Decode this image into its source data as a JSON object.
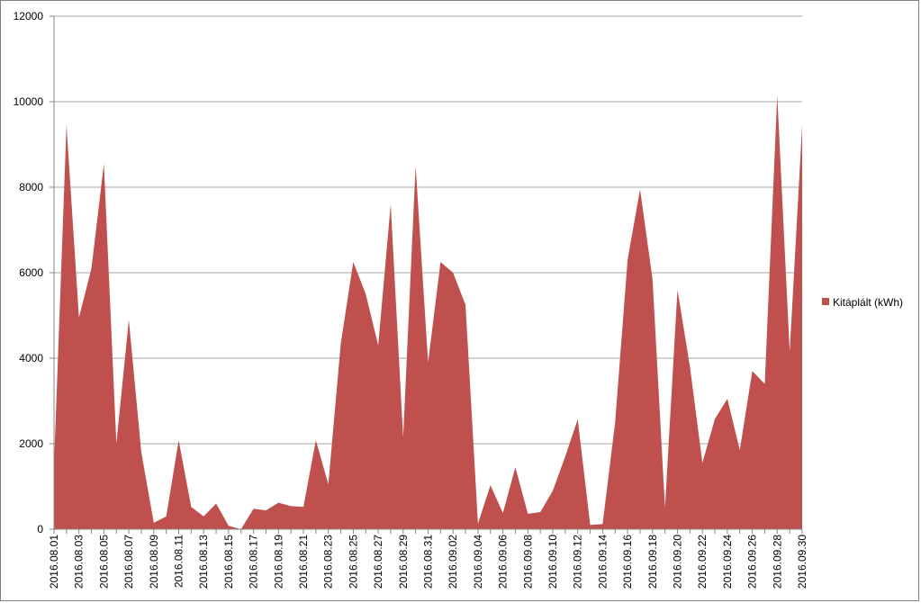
{
  "chart_data": {
    "type": "area",
    "title": "",
    "xlabel": "",
    "ylabel": "",
    "ylim": [
      0,
      12000
    ],
    "y_ticks": [
      "0",
      "2000",
      "4000",
      "6000",
      "8000",
      "10000",
      "12000"
    ],
    "grid": "horizontal",
    "legend_position": "right",
    "colors": {
      "series": "#c0504d",
      "grid": "#a6a6a6",
      "axis": "#868686"
    },
    "x": [
      "2016.08.01",
      "2016.08.02",
      "2016.08.03",
      "2016.08.04",
      "2016.08.05",
      "2016.08.06",
      "2016.08.07",
      "2016.08.08",
      "2016.08.09",
      "2016.08.10",
      "2016.08.11",
      "2016.08.12",
      "2016.08.13",
      "2016.08.14",
      "2016.08.15",
      "2016.08.16",
      "2016.08.17",
      "2016.08.18",
      "2016.08.19",
      "2016.08.20",
      "2016.08.21",
      "2016.08.22",
      "2016.08.23",
      "2016.08.24",
      "2016.08.25",
      "2016.08.26",
      "2016.08.27",
      "2016.08.28",
      "2016.08.29",
      "2016.08.30",
      "2016.08.31",
      "2016.09.01",
      "2016.09.02",
      "2016.09.03",
      "2016.09.04",
      "2016.09.05",
      "2016.09.06",
      "2016.09.07",
      "2016.09.08",
      "2016.09.09",
      "2016.09.10",
      "2016.09.11",
      "2016.09.12",
      "2016.09.13",
      "2016.09.14",
      "2016.09.15",
      "2016.09.16",
      "2016.09.17",
      "2016.09.18",
      "2016.09.19",
      "2016.09.20",
      "2016.09.21",
      "2016.09.22",
      "2016.09.23",
      "2016.09.24",
      "2016.09.25",
      "2016.09.26",
      "2016.09.27",
      "2016.09.28",
      "2016.09.29",
      "2016.09.30"
    ],
    "x_tick_labels": [
      "2016.08.01",
      "",
      "2016.08.03",
      "",
      "2016.08.05",
      "",
      "2016.08.07",
      "",
      "2016.08.09",
      "",
      "2016.08.11",
      "",
      "2016.08.13",
      "",
      "2016.08.15",
      "",
      "2016.08.17",
      "",
      "2016.08.19",
      "",
      "2016.08.21",
      "",
      "2016.08.23",
      "",
      "2016.08.25",
      "",
      "2016.08.27",
      "",
      "2016.08.29",
      "",
      "2016.08.31",
      "",
      "2016.09.02",
      "",
      "2016.09.04",
      "",
      "2016.09.06",
      "",
      "2016.09.08",
      "",
      "2016.09.10",
      "",
      "2016.09.12",
      "",
      "2016.09.14",
      "",
      "2016.09.16",
      "",
      "2016.09.18",
      "",
      "2016.09.20",
      "",
      "2016.09.22",
      "",
      "2016.09.24",
      "",
      "2016.09.26",
      "",
      "2016.09.28",
      "",
      "2016.09.30"
    ],
    "series": [
      {
        "name": "Kitáplált (kWh)",
        "values": [
          1500,
          9450,
          4950,
          6100,
          8550,
          2000,
          4900,
          1800,
          150,
          300,
          2080,
          520,
          300,
          600,
          80,
          0,
          480,
          440,
          620,
          540,
          520,
          2080,
          1050,
          4350,
          6250,
          5500,
          4300,
          7600,
          2150,
          8500,
          3900,
          6250,
          6000,
          5250,
          130,
          1030,
          380,
          1450,
          360,
          400,
          900,
          1700,
          2570,
          100,
          120,
          2500,
          6300,
          7950,
          5850,
          500,
          5600,
          3800,
          1550,
          2580,
          3050,
          1850,
          3700,
          3400,
          10150,
          4150,
          9450
        ]
      }
    ]
  }
}
